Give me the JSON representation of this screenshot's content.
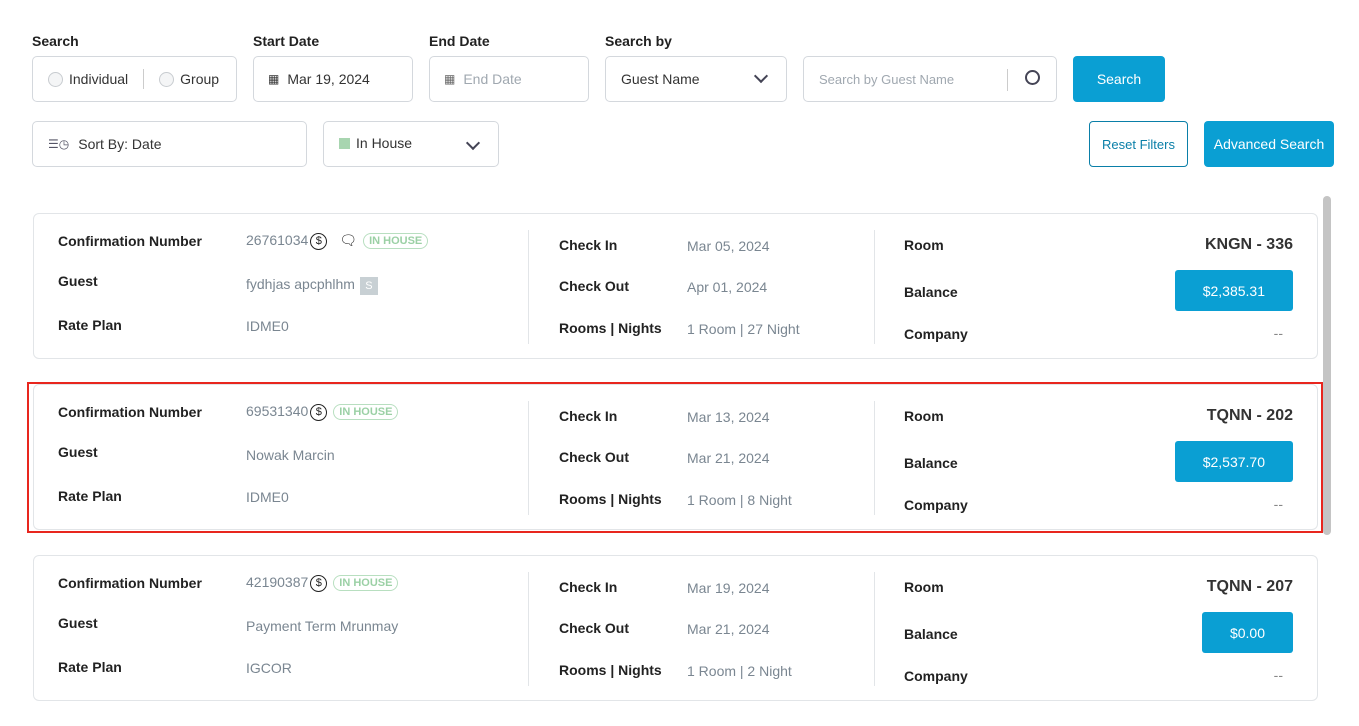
{
  "filters": {
    "search_label": "Search",
    "individual": "Individual",
    "group": "Group",
    "start_date_label": "Start Date",
    "start_date_value": "Mar 19, 2024",
    "end_date_label": "End Date",
    "end_date_placeholder": "End Date",
    "search_by_label": "Search by",
    "search_by_value": "Guest Name",
    "search_placeholder": "Search by Guest Name",
    "search_button": "Search",
    "sort_label": "Sort By: Date",
    "status_value": "In House",
    "status_color": "#a8d5b0",
    "reset_button": "Reset Filters",
    "advanced_button": "Advanced Search"
  },
  "labels": {
    "confirmation": "Confirmation Number",
    "guest": "Guest",
    "rate_plan": "Rate Plan",
    "check_in": "Check In",
    "check_out": "Check Out",
    "rooms_nights": "Rooms | Nights",
    "room": "Room",
    "balance": "Balance",
    "company": "Company"
  },
  "reservations": [
    {
      "confirmation": "26761034",
      "badge": "IN HOUSE",
      "has_message": true,
      "guest": "fydhjas apcphlhm",
      "guest_icon": "S",
      "rate_plan": "IDME0",
      "check_in": "Mar 05, 2024",
      "check_out": "Apr 01, 2024",
      "rooms_nights": "1 Room | 27 Night",
      "room": "KNGN - 336",
      "balance": "$2,385.31",
      "company": "--"
    },
    {
      "confirmation": "69531340",
      "badge": "IN HOUSE",
      "has_message": false,
      "guest": "Nowak Marcin",
      "rate_plan": "IDME0",
      "check_in": "Mar 13, 2024",
      "check_out": "Mar 21, 2024",
      "rooms_nights": "1 Room | 8 Night",
      "room": "TQNN - 202",
      "balance": "$2,537.70",
      "company": "--",
      "highlighted": true
    },
    {
      "confirmation": "42190387",
      "badge": "IN HOUSE",
      "has_message": false,
      "guest": "Payment Term Mrunmay",
      "rate_plan": "IGCOR",
      "check_in": "Mar 19, 2024",
      "check_out": "Mar 21, 2024",
      "rooms_nights": "1 Room | 2 Night",
      "room": "TQNN - 207",
      "balance": "$0.00",
      "company": "--"
    }
  ]
}
